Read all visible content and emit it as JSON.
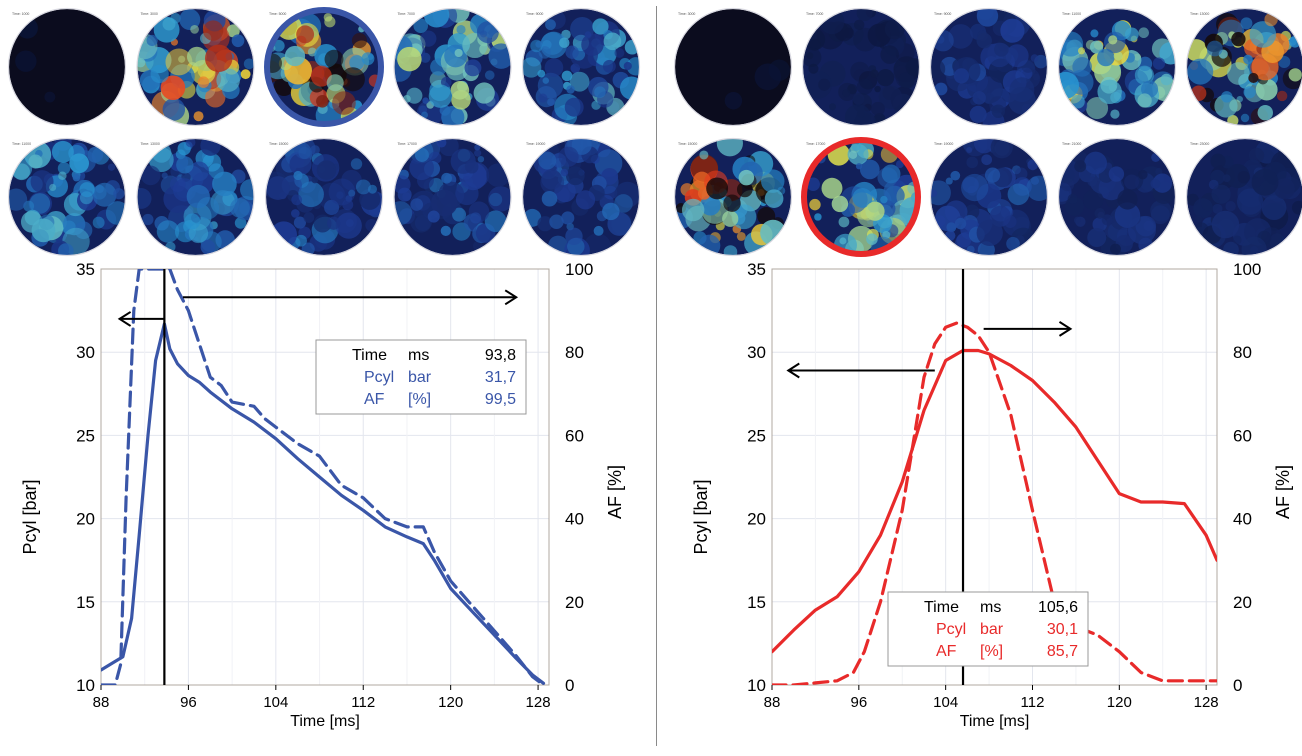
{
  "panels": [
    {
      "id": "left",
      "accent": "#3a56a8",
      "highlight_color": "#3a56a8",
      "highlight_index": 2,
      "images": {
        "rows": 2,
        "cols": 5,
        "captions": [
          "Time: 1000",
          "Time: 3000",
          "Time: 5000",
          "Time: 7000",
          "Time: 9000",
          "Time: 11000",
          "Time: 13000",
          "Time: 15000",
          "Time: 17000",
          "Time: 19000"
        ],
        "intensity": [
          0.02,
          0.7,
          0.85,
          0.55,
          0.45,
          0.45,
          0.4,
          0.35,
          0.35,
          0.3
        ]
      },
      "chart_data": {
        "type": "line",
        "xlabel": "Time [ms]",
        "ylabel": "Pcyl [bar]",
        "y2label": "AF [%]",
        "xlim": [
          88,
          129
        ],
        "ylim": [
          10,
          35
        ],
        "y2lim": [
          0,
          100
        ],
        "xticks": [
          "88",
          "96",
          "104",
          "112",
          "120",
          "128"
        ],
        "yticks": [
          "10",
          "15",
          "20",
          "25",
          "30",
          "35"
        ],
        "y2ticks": [
          "0",
          "20",
          "40",
          "60",
          "80",
          "100"
        ],
        "marker_x": 93.8,
        "series": [
          {
            "name": "Pcyl",
            "axis": "left",
            "style": "solid",
            "x": [
              88,
              89,
              90,
              90.8,
              91.5,
              92.3,
              93,
              93.8,
              94.3,
              95,
              96,
              97,
              98,
              100,
              102,
              104,
              106,
              108,
              110,
              112,
              114,
              116,
              117.5,
              118.5,
              120,
              122,
              124,
              126,
              127.5,
              128.5
            ],
            "y": [
              10.9,
              11.3,
              11.7,
              14,
              19,
              25,
              29.5,
              31.7,
              30.2,
              29.3,
              28.6,
              28.2,
              27.6,
              26.6,
              25.8,
              24.8,
              23.6,
              22.5,
              21.4,
              20.5,
              19.5,
              18.9,
              18.5,
              17.5,
              15.8,
              14.4,
              13,
              11.6,
              10.6,
              10.1
            ]
          },
          {
            "name": "AF",
            "axis": "right",
            "style": "dashed",
            "x": [
              88,
              89.3,
              89.8,
              90.3,
              91,
              91.5,
              92,
              93,
              94.3,
              95,
              96,
              97,
              98,
              99,
              100,
              102,
              103,
              104,
              106,
              108,
              110,
              112,
              114,
              116,
              117.5,
              118.5,
              120,
              122,
              124,
              126,
              127.5,
              128.5
            ],
            "y": [
              0,
              0,
              5,
              45,
              90,
              100,
              100,
              100,
              100,
              95,
              90,
              82,
              74,
              72,
              68,
              67,
              64,
              62,
              58,
              55,
              48,
              45,
              40,
              38,
              38,
              32,
              25,
              19,
              13,
              7,
              2,
              0
            ]
          }
        ],
        "readout": {
          "rows": [
            {
              "label": "Time",
              "unit": "ms",
              "value": "93,8"
            },
            {
              "label": "Pcyl",
              "unit": "bar",
              "value": "31,7"
            },
            {
              "label": "AF",
              "unit": "[%]",
              "value": "99,5"
            }
          ]
        },
        "arrows": [
          {
            "dir": "left",
            "x_from": 93.8,
            "x_to": 89.7,
            "y": 32
          },
          {
            "dir": "right",
            "x_from": 95.5,
            "x_to": 126,
            "y": 33.3
          }
        ]
      }
    },
    {
      "id": "right",
      "accent": "#e82a2a",
      "highlight_color": "#e82a2a",
      "highlight_index": 6,
      "images": {
        "rows": 2,
        "cols": 5,
        "captions": [
          "Time: 3000",
          "Time: 7000",
          "Time: 9000",
          "Time: 11000",
          "Time: 13000",
          "Time: 15000",
          "Time: 17000",
          "Time: 19000",
          "Time: 21000",
          "Time: 23000"
        ],
        "intensity": [
          0.01,
          0.08,
          0.25,
          0.6,
          0.8,
          0.85,
          0.6,
          0.3,
          0.2,
          0.15
        ]
      },
      "chart_data": {
        "type": "line",
        "xlabel": "Time [ms]",
        "ylabel": "Pcyl [bar]",
        "y2label": "AF [%]",
        "xlim": [
          88,
          129
        ],
        "ylim": [
          10,
          35
        ],
        "y2lim": [
          0,
          100
        ],
        "xticks": [
          "88",
          "96",
          "104",
          "112",
          "120",
          "128"
        ],
        "yticks": [
          "10",
          "15",
          "20",
          "25",
          "30",
          "35"
        ],
        "y2ticks": [
          "0",
          "20",
          "40",
          "60",
          "80",
          "100"
        ],
        "marker_x": 105.6,
        "series": [
          {
            "name": "Pcyl",
            "axis": "left",
            "style": "solid",
            "x": [
              88,
              90,
              92,
              94,
              96,
              98,
              100,
              102,
              104,
              105.6,
              107,
              108,
              110,
              112,
              114,
              116,
              118,
              120,
              122,
              124,
              126,
              128,
              129
            ],
            "y": [
              12,
              13.3,
              14.5,
              15.3,
              16.8,
              19,
              22.2,
              26.5,
              29.5,
              30.1,
              30.1,
              29.9,
              29.2,
              28.3,
              27,
              25.5,
              23.5,
              21.5,
              21,
              21,
              20.9,
              19,
              17.5
            ]
          },
          {
            "name": "AF",
            "axis": "right",
            "style": "dashed",
            "x": [
              88,
              90,
              92,
              94,
              95.5,
              96.5,
              98,
              100,
              102,
              103,
              104,
              105,
              106,
              107,
              108,
              110,
              112,
              114,
              115,
              116,
              117,
              118,
              120,
              122,
              124,
              126,
              128,
              129
            ],
            "y": [
              0,
              0,
              0.5,
              1,
              3,
              8,
              20,
              42,
              74,
              82,
              86,
              87,
              86,
              84,
              80,
              65,
              42,
              20,
              15,
              14,
              13,
              12,
              8,
              3,
              1,
              1,
              1,
              1
            ]
          }
        ],
        "readout": {
          "rows": [
            {
              "label": "Time",
              "unit": "ms",
              "value": "105,6"
            },
            {
              "label": "Pcyl",
              "unit": "bar",
              "value": "30,1"
            },
            {
              "label": "AF",
              "unit": "[%]",
              "value": "85,7"
            }
          ]
        },
        "arrows": [
          {
            "dir": "left",
            "x_from": 103,
            "x_to": 89.5,
            "y": 28.9
          },
          {
            "dir": "right",
            "x_from": 107.5,
            "x_to": 115.5,
            "y": 31.4
          }
        ]
      }
    }
  ]
}
